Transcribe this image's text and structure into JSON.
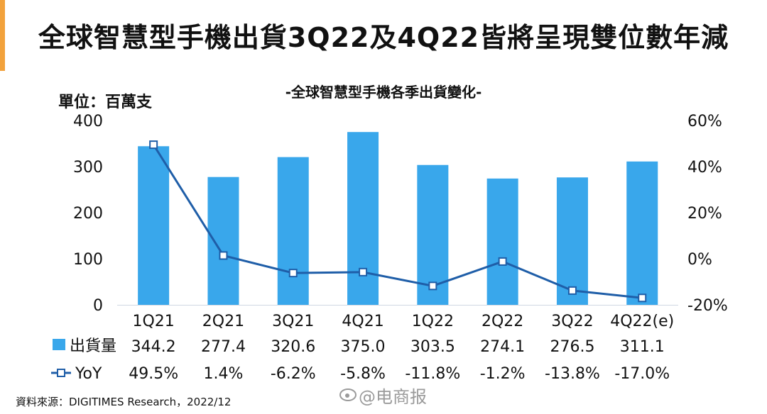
{
  "title": "全球智慧型手機出貨3Q22及4Q22皆將呈現雙位數年減",
  "subtitle": "-全球智慧型手機各季出貨變化-",
  "unit_label": "單位：百萬支",
  "source": "資料來源：DIGITIMES Research，2022/12",
  "watermark": "@电商报",
  "colors": {
    "bar": "#39a7eb",
    "line": "#1f5ea8",
    "accent": "#f2a23c"
  },
  "chart_data": {
    "type": "bar",
    "categories": [
      "1Q21",
      "2Q21",
      "3Q21",
      "4Q21",
      "1Q22",
      "2Q22",
      "3Q22",
      "4Q22(e)"
    ],
    "series": [
      {
        "name": "出貨量",
        "type": "bar",
        "axis": "left",
        "values": [
          344.2,
          277.4,
          320.6,
          375.0,
          303.5,
          274.1,
          276.5,
          311.1
        ],
        "labels": [
          "344.2",
          "277.4",
          "320.6",
          "375.0",
          "303.5",
          "274.1",
          "276.5",
          "311.1"
        ]
      },
      {
        "name": "YoY",
        "type": "line",
        "axis": "right",
        "values": [
          49.5,
          1.4,
          -6.2,
          -5.8,
          -11.8,
          -1.2,
          -13.8,
          -17.0
        ],
        "labels": [
          "49.5%",
          "1.4%",
          "-6.2%",
          "-5.8%",
          "-11.8%",
          "-1.2%",
          "-13.8%",
          "-17.0%"
        ]
      }
    ],
    "y_left": {
      "ylim": [
        0,
        400
      ],
      "ticks": [
        "400",
        "300",
        "200",
        "100",
        "0"
      ]
    },
    "y_right": {
      "ylim": [
        -20,
        60
      ],
      "ticks": [
        "60%",
        "40%",
        "20%",
        "0%",
        "-20%"
      ]
    },
    "legend_placement": "data table below chart",
    "grid": false
  }
}
